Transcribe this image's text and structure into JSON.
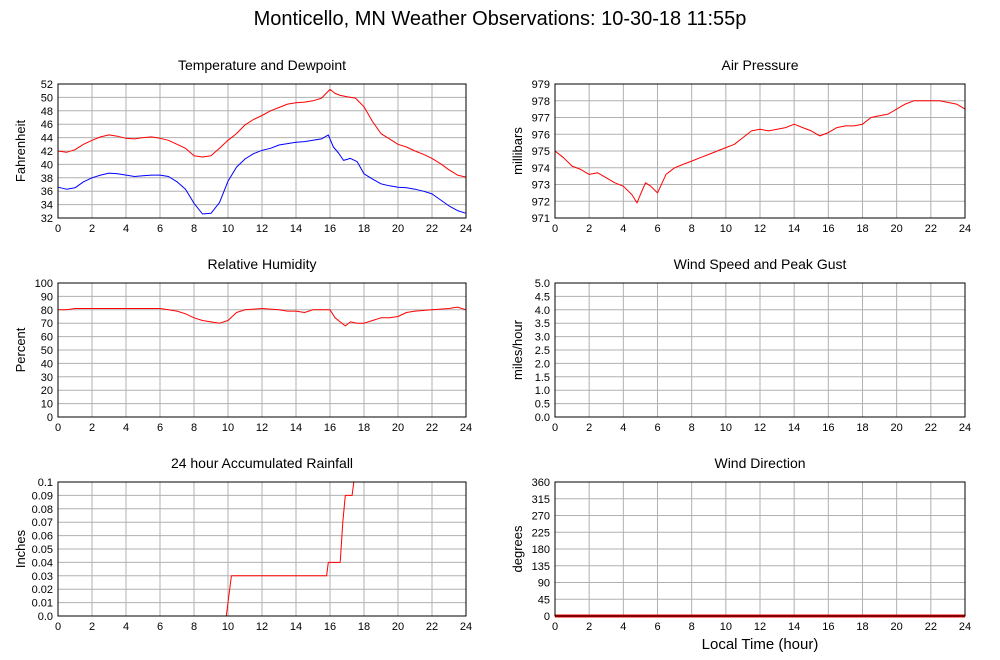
{
  "page": {
    "title": "Monticello, MN Weather Observations: 10-30-18 11:55p",
    "xaxis_label": "Local Time (hour)"
  },
  "colors": {
    "primary": "#ff0000",
    "secondary": "#0000ff",
    "grid": "#b0b0b0",
    "axis": "#000000"
  },
  "chart_data": [
    {
      "type": "line",
      "title": "Temperature and Dewpoint",
      "ylabel": "Fahrenheit",
      "xlim": [
        0,
        24
      ],
      "ylim": [
        32,
        52
      ],
      "xticks": [
        "0",
        "2",
        "4",
        "6",
        "8",
        "10",
        "12",
        "14",
        "16",
        "18",
        "20",
        "22",
        "24"
      ],
      "yticks": [
        "32",
        "34",
        "36",
        "38",
        "40",
        "42",
        "44",
        "46",
        "48",
        "50",
        "52"
      ],
      "grid": true,
      "series": [
        {
          "color": "#ff0000",
          "x": [
            0,
            0.5,
            1,
            1.5,
            2,
            2.5,
            3,
            3.5,
            4,
            4.5,
            5,
            5.5,
            6,
            6.5,
            7,
            7.5,
            8,
            8.5,
            9,
            9.5,
            10,
            10.5,
            11,
            11.5,
            12,
            12.5,
            13,
            13.5,
            14,
            14.5,
            15,
            15.5,
            16,
            16.3,
            16.6,
            17,
            17.5,
            18,
            18.5,
            19,
            19.5,
            20,
            20.5,
            21,
            21.5,
            22,
            22.5,
            23,
            23.5,
            24
          ],
          "y": [
            42,
            41.8,
            42.2,
            43,
            43.6,
            44.1,
            44.4,
            44.2,
            43.9,
            43.8,
            44,
            44.1,
            43.9,
            43.6,
            43,
            42.4,
            41.3,
            41.1,
            41.3,
            42.4,
            43.6,
            44.6,
            45.9,
            46.7,
            47.3,
            48,
            48.5,
            49,
            49.2,
            49.3,
            49.5,
            49.9,
            51.2,
            50.6,
            50.3,
            50.1,
            49.9,
            48.6,
            46.4,
            44.6,
            43.8,
            43,
            42.6,
            42,
            41.5,
            40.9,
            40.1,
            39.2,
            38.4,
            38.1
          ]
        },
        {
          "color": "#0000ff",
          "x": [
            0,
            0.5,
            1,
            1.5,
            2,
            2.5,
            3,
            3.5,
            4,
            4.5,
            5,
            5.5,
            6,
            6.5,
            7,
            7.5,
            8,
            8.5,
            9,
            9.5,
            10,
            10.5,
            11,
            11.5,
            12,
            12.5,
            13,
            13.5,
            14,
            14.5,
            15,
            15.5,
            15.9,
            16.2,
            16.5,
            16.8,
            17.2,
            17.6,
            18,
            18.5,
            19,
            19.5,
            20,
            20.5,
            21,
            21.5,
            22,
            22.5,
            23,
            23.5,
            24
          ],
          "y": [
            36.6,
            36.3,
            36.5,
            37.4,
            38,
            38.4,
            38.7,
            38.6,
            38.4,
            38.2,
            38.3,
            38.4,
            38.4,
            38.2,
            37.4,
            36.3,
            34.2,
            32.6,
            32.7,
            34.3,
            37.5,
            39.6,
            40.8,
            41.6,
            42.1,
            42.4,
            42.9,
            43.1,
            43.3,
            43.4,
            43.6,
            43.8,
            44.4,
            42.6,
            41.7,
            40.6,
            40.9,
            40.4,
            38.6,
            37.8,
            37.1,
            36.8,
            36.6,
            36.5,
            36.3,
            36,
            35.6,
            34.7,
            33.8,
            33.1,
            32.7
          ]
        }
      ]
    },
    {
      "type": "line",
      "title": "Air Pressure",
      "ylabel": "millibars",
      "xlim": [
        0,
        24
      ],
      "ylim": [
        971,
        979
      ],
      "xticks": [
        "0",
        "2",
        "4",
        "6",
        "8",
        "10",
        "12",
        "14",
        "16",
        "18",
        "20",
        "22",
        "24"
      ],
      "yticks": [
        "971",
        "972",
        "973",
        "974",
        "975",
        "976",
        "977",
        "978",
        "979"
      ],
      "grid": true,
      "series": [
        {
          "color": "#ff0000",
          "x": [
            0,
            0.5,
            1,
            1.5,
            2,
            2.5,
            3,
            3.5,
            4,
            4.5,
            4.8,
            5,
            5.3,
            5.6,
            6,
            6.5,
            7,
            7.5,
            8,
            8.5,
            9,
            9.5,
            10,
            10.5,
            11,
            11.5,
            12,
            12.5,
            13,
            13.5,
            14,
            14.5,
            15,
            15.5,
            16,
            16.5,
            17,
            17.5,
            18,
            18.5,
            19,
            19.5,
            20,
            20.5,
            21,
            21.5,
            22,
            22.5,
            23,
            23.5,
            24
          ],
          "y": [
            975,
            974.6,
            974.1,
            973.9,
            973.6,
            973.7,
            973.4,
            973.1,
            972.9,
            972.4,
            971.9,
            972.4,
            973.1,
            972.9,
            972.5,
            973.6,
            974,
            974.2,
            974.4,
            974.6,
            974.8,
            975,
            975.2,
            975.4,
            975.8,
            976.2,
            976.3,
            976.2,
            976.3,
            976.4,
            976.6,
            976.4,
            976.2,
            975.9,
            976.1,
            976.4,
            976.5,
            976.5,
            976.6,
            977,
            977.1,
            977.2,
            977.5,
            977.8,
            978,
            978,
            978,
            978,
            977.9,
            977.8,
            977.5
          ]
        }
      ]
    },
    {
      "type": "line",
      "title": "Relative Humidity",
      "ylabel": "Percent",
      "xlim": [
        0,
        24
      ],
      "ylim": [
        0,
        100
      ],
      "xticks": [
        "0",
        "2",
        "4",
        "6",
        "8",
        "10",
        "12",
        "14",
        "16",
        "18",
        "20",
        "22",
        "24"
      ],
      "yticks": [
        "0",
        "10",
        "20",
        "30",
        "40",
        "50",
        "60",
        "70",
        "80",
        "90",
        "100"
      ],
      "grid": true,
      "series": [
        {
          "color": "#ff0000",
          "x": [
            0,
            0.5,
            1,
            2,
            3,
            4,
            5,
            6,
            6.5,
            7,
            7.5,
            8,
            8.5,
            9,
            9.5,
            10,
            10.5,
            11,
            12,
            13,
            13.5,
            14,
            14.5,
            15,
            15.5,
            16,
            16.3,
            16.6,
            16.9,
            17.2,
            17.6,
            18,
            18.5,
            19,
            19.5,
            20,
            20.5,
            21,
            22,
            23,
            23.5,
            24
          ],
          "y": [
            80,
            80,
            81,
            81,
            81,
            81,
            81,
            81,
            80,
            79,
            77,
            74,
            72,
            71,
            70,
            72,
            78,
            80,
            81,
            80,
            79,
            79,
            78,
            80,
            80,
            80,
            74,
            71,
            68,
            71,
            70,
            70,
            72,
            74,
            74,
            75,
            78,
            79,
            80,
            81,
            82,
            80
          ]
        }
      ]
    },
    {
      "type": "line",
      "title": "Wind Speed and Peak Gust",
      "ylabel": "miles/hour",
      "xlim": [
        0,
        24
      ],
      "ylim": [
        0,
        5
      ],
      "xticks": [
        "0",
        "2",
        "4",
        "6",
        "8",
        "10",
        "12",
        "14",
        "16",
        "18",
        "20",
        "22",
        "24"
      ],
      "yticks": [
        "0.0",
        "0.5",
        "1.0",
        "1.5",
        "2.0",
        "2.5",
        "3.0",
        "3.5",
        "4.0",
        "4.5",
        "5.0"
      ],
      "grid": true,
      "series": [
        {
          "color": "#0000ff",
          "x": [
            0,
            24
          ],
          "y": [
            0,
            0
          ]
        }
      ]
    },
    {
      "type": "line",
      "title": "24 hour Accumulated Rainfall",
      "ylabel": "Inches",
      "xlim": [
        0,
        24
      ],
      "ylim": [
        0,
        0.1
      ],
      "xticks": [
        "0",
        "2",
        "4",
        "6",
        "8",
        "10",
        "12",
        "14",
        "16",
        "18",
        "20",
        "22",
        "24"
      ],
      "yticks": [
        "0.0",
        "0.01",
        "0.02",
        "0.03",
        "0.04",
        "0.05",
        "0.06",
        "0.07",
        "0.08",
        "0.09",
        "0.1"
      ],
      "grid": true,
      "series": [
        {
          "color": "#ff0000",
          "x": [
            0,
            9.9,
            10,
            10.2,
            15.8,
            15.9,
            16.6,
            16.75,
            16.9,
            17.3,
            17.4,
            24
          ],
          "y": [
            0,
            0,
            0.01,
            0.03,
            0.03,
            0.04,
            0.04,
            0.07,
            0.09,
            0.09,
            0.1,
            0.1
          ]
        }
      ]
    },
    {
      "type": "line",
      "title": "Wind Direction",
      "ylabel": "degrees",
      "xlim": [
        0,
        24
      ],
      "ylim": [
        0,
        360
      ],
      "xticks": [
        "0",
        "2",
        "4",
        "6",
        "8",
        "10",
        "12",
        "14",
        "16",
        "18",
        "20",
        "22",
        "24"
      ],
      "yticks": [
        "0",
        "45",
        "90",
        "135",
        "180",
        "225",
        "270",
        "315",
        "360"
      ],
      "grid": true,
      "series": [
        {
          "color": "#ff0000",
          "width": 3,
          "x": [
            0,
            24
          ],
          "y": [
            0,
            0
          ]
        }
      ]
    }
  ]
}
